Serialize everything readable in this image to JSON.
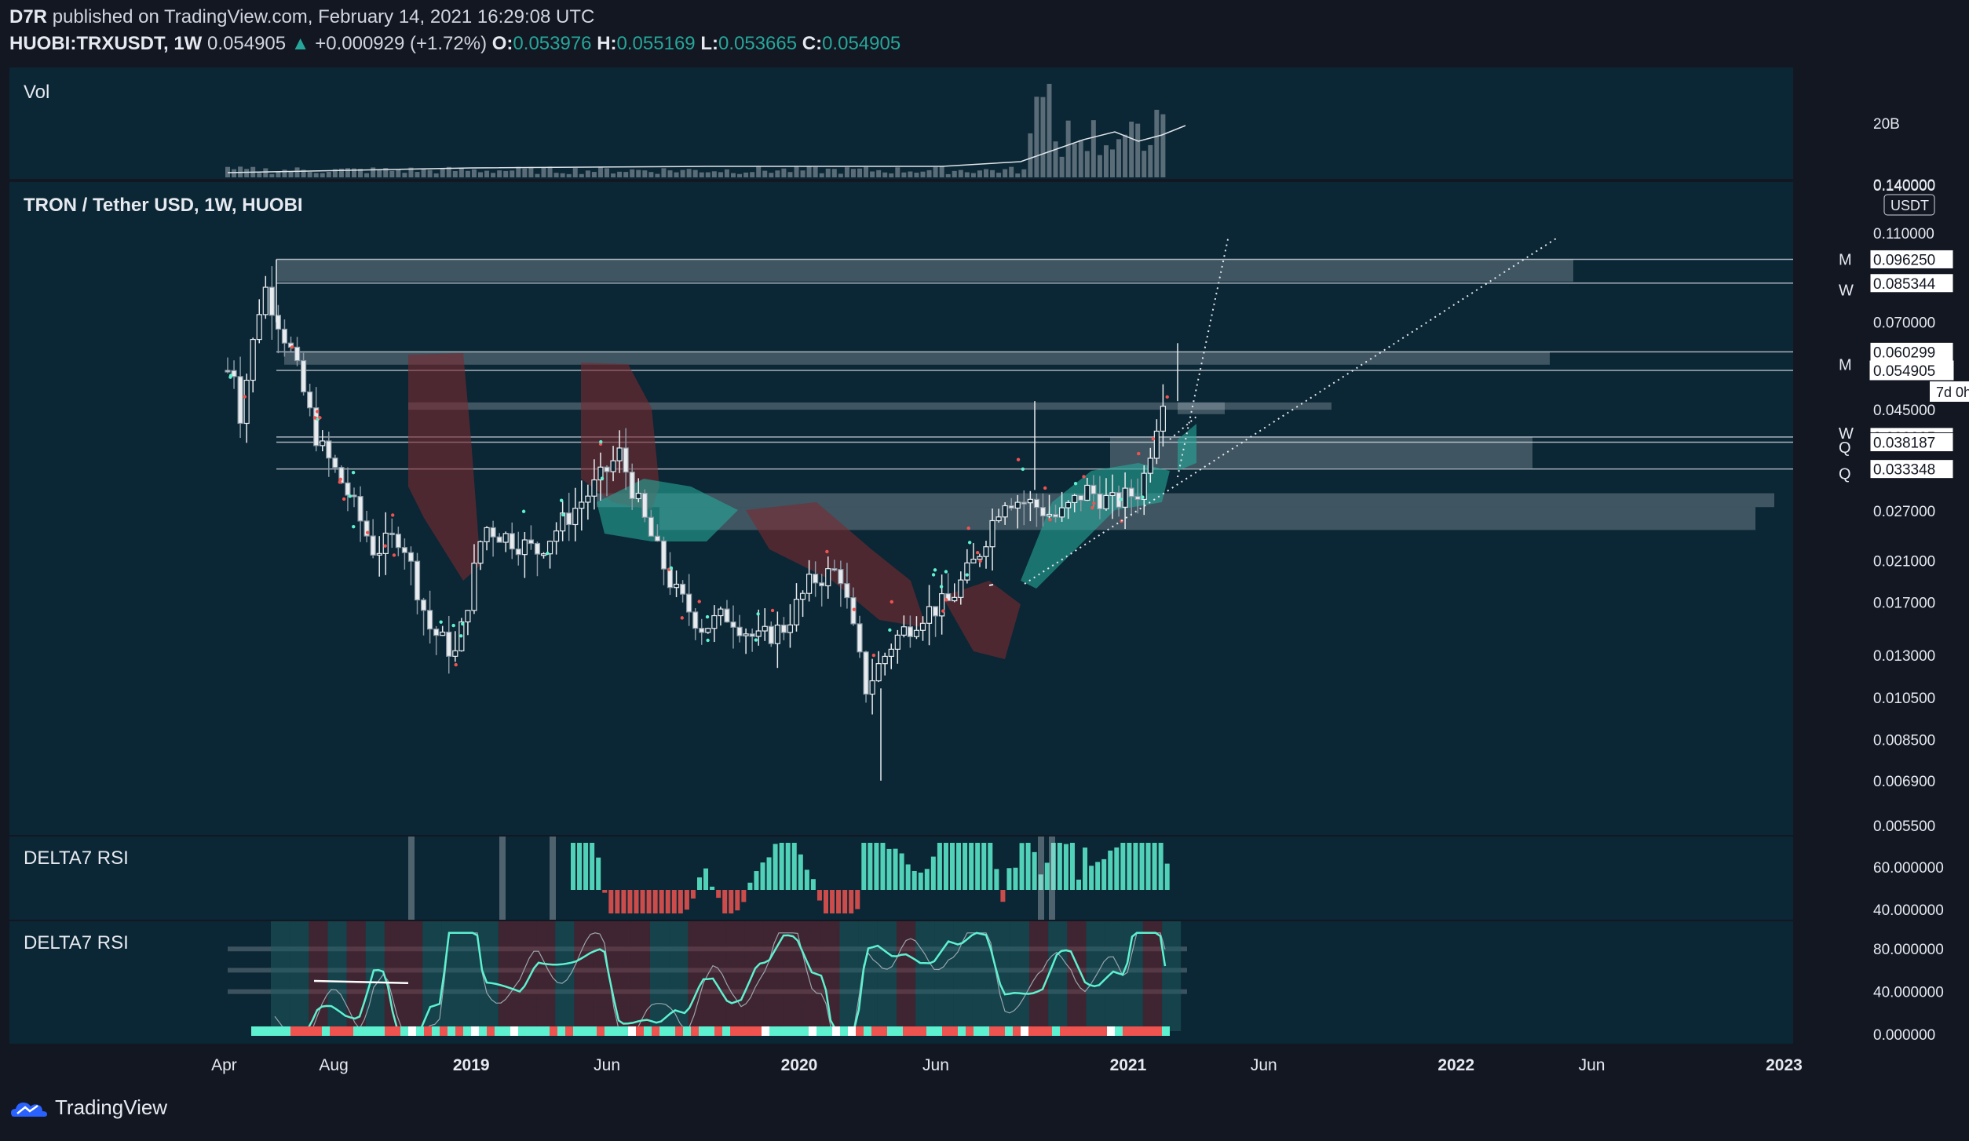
{
  "header": {
    "author": "D7R",
    "published_text": "published on TradingView.com, February 14, 2021 16:29:08 UTC",
    "symbol": "HUOBI:TRXUSDT, 1W",
    "last": "0.054905",
    "arrow": "▲",
    "change": "+0.000929 (+1.72%)",
    "o_label": "O:",
    "o": "0.053976",
    "h_label": "H:",
    "h": "0.055169",
    "l_label": "L:",
    "l": "0.053665",
    "c_label": "C:",
    "c": "0.054905"
  },
  "panes": {
    "vol_title": "Vol",
    "vol_scale": "20B",
    "main_title": "TRON / Tether USD, 1W, HUOBI",
    "currency": "USDT",
    "countdown": "7d 0h",
    "rsi1_title": "DELTA7 RSI",
    "rsi2_title": "DELTA7 RSI"
  },
  "footer": {
    "brand": "TradingView"
  },
  "colors": {
    "background": "#131722",
    "pane": "#0b2634",
    "up": "#26a69a",
    "down": "#ef5350",
    "teal_bright": "#5ef1d0",
    "red_cloud": "#7a2a30"
  },
  "chart_data": [
    {
      "type": "candlestick",
      "title": "TRON / Tether USD, 1W, HUOBI",
      "y_scale": "log",
      "ylim": [
        0.0055,
        0.14
      ],
      "y_ticks": [
        0.14,
        0.11,
        0.085344,
        0.07,
        0.054905,
        0.045,
        0.039205,
        0.038187,
        0.033348,
        0.027,
        0.021,
        0.017,
        0.013,
        0.0105,
        0.0085,
        0.0069,
        0.0055
      ],
      "y_tick_labels": [
        "0.140000",
        "0.110000",
        "0.085344",
        "0.070000",
        "0.054905",
        "0.045000",
        "0.039205",
        "0.038187",
        "0.033348",
        "0.027000",
        "0.021000",
        "0.017000",
        "0.013000",
        "0.010500",
        "0.008500",
        "0.006900",
        "0.005500"
      ],
      "x_ticks": [
        "Apr",
        "Aug",
        "2019",
        "Jun",
        "2020",
        "Jun",
        "2021",
        "Jun",
        "2022",
        "Jun",
        "2023"
      ],
      "close_path": [
        [
          "2018-04",
          0.04
        ],
        [
          "2018-05",
          0.085
        ],
        [
          "2018-06",
          0.06
        ],
        [
          "2018-07",
          0.038
        ],
        [
          "2018-08",
          0.03
        ],
        [
          "2018-09",
          0.022
        ],
        [
          "2018-10",
          0.024
        ],
        [
          "2018-11",
          0.015
        ],
        [
          "2018-12",
          0.013
        ],
        [
          "2019-01",
          0.025
        ],
        [
          "2019-03",
          0.022
        ],
        [
          "2019-05",
          0.03
        ],
        [
          "2019-06",
          0.036
        ],
        [
          "2019-07",
          0.025
        ],
        [
          "2019-08",
          0.018
        ],
        [
          "2019-09",
          0.015
        ],
        [
          "2019-10",
          0.016
        ],
        [
          "2019-11",
          0.014
        ],
        [
          "2019-12",
          0.015
        ],
        [
          "2020-01",
          0.019
        ],
        [
          "2020-02",
          0.02
        ],
        [
          "2020-03",
          0.011
        ],
        [
          "2020-04",
          0.014
        ],
        [
          "2020-05",
          0.016
        ],
        [
          "2020-06",
          0.017
        ],
        [
          "2020-07",
          0.021
        ],
        [
          "2020-08",
          0.029
        ],
        [
          "2020-09",
          0.028
        ],
        [
          "2020-10",
          0.026
        ],
        [
          "2020-11",
          0.03
        ],
        [
          "2020-12",
          0.028
        ],
        [
          "2021-01",
          0.03
        ],
        [
          "2021-02",
          0.054905
        ]
      ],
      "high": 0.0962,
      "low": 0.0069,
      "horizontal_levels": [
        {
          "value": 0.09625,
          "tag": "M"
        },
        {
          "value": 0.085344,
          "tag": "W"
        },
        {
          "value": 0.060299,
          "tag": "M"
        },
        {
          "value": 0.054905,
          "tag": ""
        },
        {
          "value": 0.039205,
          "tag": "W"
        },
        {
          "value": 0.038187,
          "tag": "Q"
        },
        {
          "value": 0.033348,
          "tag": "Q"
        }
      ],
      "level_labels": [
        "0.096250",
        "0.085344",
        "0.060299",
        "0.054905",
        "0.039205",
        "0.038187",
        "0.033348"
      ],
      "level_tags": [
        "M",
        "W",
        "M",
        "W",
        "Q",
        "Q"
      ]
    },
    {
      "type": "bar",
      "title": "Vol",
      "note_scale": "20B"
    },
    {
      "type": "bar",
      "title": "DELTA7 RSI",
      "y_ticks": [
        60,
        40
      ],
      "y_tick_labels": [
        "60.000000",
        "40.000000"
      ]
    },
    {
      "type": "line",
      "title": "DELTA7 RSI",
      "y_ticks": [
        80,
        40,
        0
      ],
      "y_tick_labels": [
        "80.000000",
        "40.000000",
        "0.000000"
      ]
    }
  ]
}
